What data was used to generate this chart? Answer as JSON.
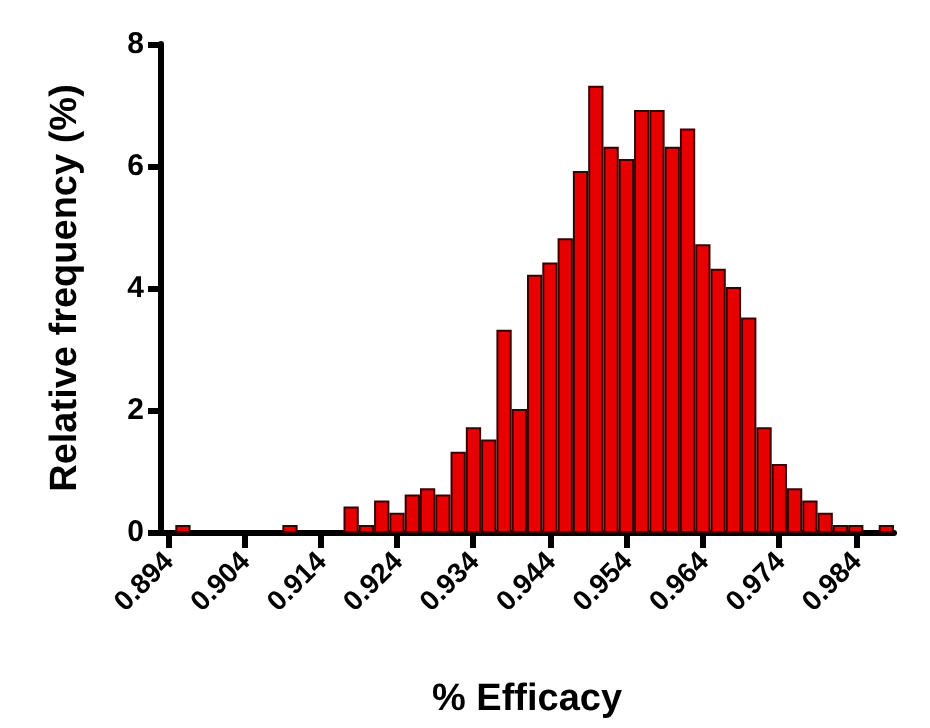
{
  "chart_data": {
    "type": "histogram",
    "xlabel": "% Efficacy",
    "ylabel": "Relative frequency (%)",
    "bins": [
      0.893,
      0.895,
      0.897,
      0.899,
      0.901,
      0.903,
      0.905,
      0.907,
      0.909,
      0.911,
      0.913,
      0.915,
      0.917,
      0.919,
      0.921,
      0.923,
      0.925,
      0.927,
      0.929,
      0.931,
      0.933,
      0.935,
      0.937,
      0.939,
      0.941,
      0.943,
      0.945,
      0.947,
      0.949,
      0.951,
      0.953,
      0.955,
      0.957,
      0.959,
      0.961,
      0.963,
      0.965,
      0.967,
      0.969,
      0.971,
      0.973,
      0.975,
      0.977,
      0.979,
      0.981,
      0.983,
      0.985,
      0.987,
      0.989
    ],
    "values": [
      0,
      0.1,
      0,
      0,
      0,
      0,
      0,
      0,
      0.1,
      0,
      0,
      0,
      0.4,
      0.1,
      0.5,
      0.3,
      0.6,
      0.7,
      0.6,
      1.3,
      1.7,
      1.5,
      3.3,
      2.0,
      4.2,
      4.4,
      4.8,
      5.9,
      7.3,
      6.3,
      6.1,
      6.9,
      6.9,
      6.3,
      6.6,
      4.7,
      4.3,
      4.0,
      3.5,
      1.7,
      1.1,
      0.7,
      0.5,
      0.3,
      0.1,
      0.1,
      0,
      0.1
    ],
    "color": "#e60000",
    "xlim": [
      0.893,
      0.989
    ],
    "xticks": [
      0.894,
      0.904,
      0.914,
      0.924,
      0.934,
      0.944,
      0.954,
      0.964,
      0.974,
      0.984
    ],
    "ylim": [
      0,
      8
    ],
    "yticks": [
      0,
      2,
      4,
      6,
      8
    ],
    "grid": false
  }
}
